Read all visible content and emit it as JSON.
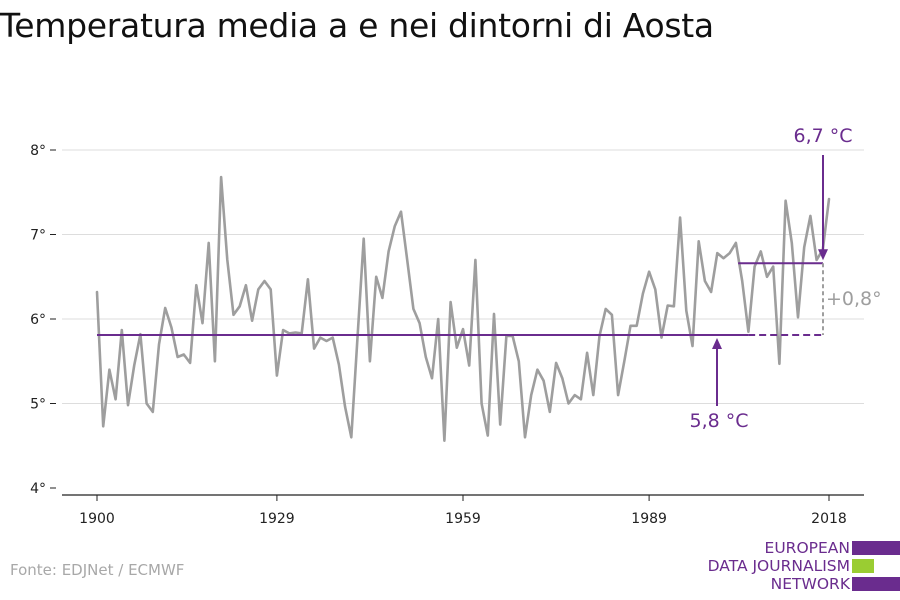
{
  "title": "Temperatura media a e nei dintorni di Aosta",
  "source": "Fonte: EDJNet / ECMWF",
  "logo": {
    "line1": "EUROPEAN",
    "line2": "DATA JOURNALISM",
    "line3": "NETWORK",
    "colors": {
      "purple": "#6a2c8e",
      "green": "#9acd32"
    }
  },
  "chart_data": {
    "type": "line",
    "title": "Temperatura media a e nei dintorni di Aosta",
    "xlabel": "",
    "ylabel": "",
    "xlim": [
      1900,
      2018
    ],
    "ylim": [
      4,
      8
    ],
    "xticks": [
      1900,
      1929,
      1959,
      1989,
      2018
    ],
    "yticks": [
      4,
      5,
      6,
      7,
      8
    ],
    "ytick_suffix": "°",
    "grid": true,
    "series": [
      {
        "color": "#9e9e9e",
        "x": [
          1900,
          1901,
          1902,
          1903,
          1904,
          1905,
          1906,
          1907,
          1908,
          1909,
          1910,
          1911,
          1912,
          1913,
          1914,
          1915,
          1916,
          1917,
          1918,
          1919,
          1920,
          1921,
          1922,
          1923,
          1924,
          1925,
          1926,
          1927,
          1928,
          1929,
          1930,
          1931,
          1932,
          1933,
          1934,
          1935,
          1936,
          1937,
          1938,
          1939,
          1940,
          1941,
          1942,
          1943,
          1944,
          1945,
          1946,
          1947,
          1948,
          1949,
          1950,
          1951,
          1952,
          1953,
          1954,
          1955,
          1956,
          1957,
          1958,
          1959,
          1960,
          1961,
          1962,
          1963,
          1964,
          1965,
          1966,
          1967,
          1968,
          1969,
          1970,
          1971,
          1972,
          1973,
          1974,
          1975,
          1976,
          1977,
          1978,
          1979,
          1980,
          1981,
          1982,
          1983,
          1984,
          1985,
          1986,
          1987,
          1988,
          1989,
          1990,
          1991,
          1992,
          1993,
          1994,
          1995,
          1996,
          1997,
          1998,
          1999,
          2000,
          2001,
          2002,
          2003,
          2004,
          2005,
          2006,
          2007,
          2008,
          2009,
          2010,
          2011,
          2012,
          2013,
          2014,
          2015,
          2016,
          2017,
          2018
        ],
        "y": [
          6.32,
          4.73,
          5.4,
          5.05,
          5.87,
          4.98,
          5.45,
          5.82,
          5.0,
          4.9,
          5.7,
          6.13,
          5.9,
          5.55,
          5.58,
          5.48,
          6.4,
          5.95,
          6.9,
          5.5,
          7.68,
          6.7,
          6.05,
          6.15,
          6.4,
          5.98,
          6.35,
          6.45,
          6.35,
          5.33,
          5.87,
          5.83,
          5.84,
          5.83,
          6.47,
          5.65,
          5.78,
          5.74,
          5.78,
          5.46,
          4.96,
          4.6,
          5.78,
          6.95,
          5.5,
          6.5,
          6.25,
          6.8,
          7.1,
          7.27,
          6.7,
          6.12,
          5.95,
          5.55,
          5.3,
          6.0,
          4.56,
          6.2,
          5.66,
          5.88,
          5.45,
          6.7,
          5.0,
          4.62,
          6.06,
          4.75,
          5.8,
          5.8,
          5.5,
          4.6,
          5.1,
          5.4,
          5.27,
          4.9,
          5.48,
          5.3,
          5.0,
          5.1,
          5.05,
          5.6,
          5.1,
          5.8,
          6.12,
          6.05,
          5.1,
          5.5,
          5.92,
          5.92,
          6.3,
          6.56,
          6.35,
          5.78,
          6.16,
          6.15,
          7.2,
          6.1,
          5.68,
          6.92,
          6.45,
          6.32,
          6.78,
          6.72,
          6.78,
          6.9,
          6.45,
          5.85,
          6.62,
          6.8,
          6.5,
          6.62,
          5.47,
          7.4,
          6.9,
          6.02,
          6.85,
          7.22,
          6.7,
          6.82,
          7.42
        ]
      }
    ],
    "averages": [
      {
        "label": "5,8 °C",
        "value": 5.81,
        "from": 1900,
        "to": 2018,
        "solid_to": 2004,
        "color": "#6a2c8e"
      },
      {
        "label": "6,7 °C",
        "value": 6.66,
        "from": 2004,
        "to": 2018,
        "color": "#6a2c8e"
      }
    ],
    "difference": {
      "label": "+0,8°",
      "color": "#9e9e9e"
    }
  }
}
